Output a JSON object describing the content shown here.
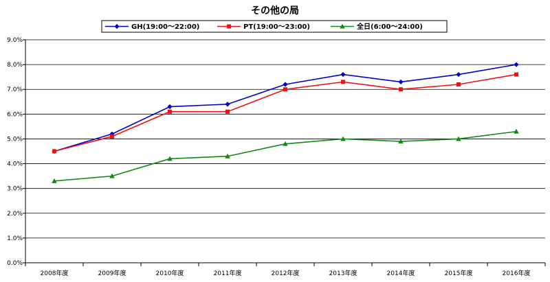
{
  "chart_data": {
    "type": "line",
    "title": "その他の局",
    "xlabel": "",
    "ylabel": "",
    "categories": [
      "2008年度",
      "2009年度",
      "2010年度",
      "2011年度",
      "2012年度",
      "2013年度",
      "2014年度",
      "2015年度",
      "2016年度"
    ],
    "ylim": [
      0,
      9
    ],
    "yticks": [
      0,
      1,
      2,
      3,
      4,
      5,
      6,
      7,
      8,
      9
    ],
    "y_tick_labels": [
      "0.0%",
      "1.0%",
      "2.0%",
      "3.0%",
      "4.0%",
      "5.0%",
      "6.0%",
      "7.0%",
      "8.0%",
      "9.0%"
    ],
    "grid": true,
    "legend_position": "top-center",
    "series": [
      {
        "name": "GH(19:00～22:00)",
        "color": "#0000cc",
        "marker": "diamond",
        "values": [
          4.5,
          5.2,
          6.3,
          6.4,
          7.2,
          7.6,
          7.3,
          7.6,
          8.0
        ]
      },
      {
        "name": "PT(19:00～23:00)",
        "color": "#ee1111",
        "marker": "square",
        "values": [
          4.5,
          5.1,
          6.1,
          6.1,
          7.0,
          7.3,
          7.0,
          7.2,
          7.6
        ]
      },
      {
        "name": "全日(6:00～24:00)",
        "color": "#118811",
        "marker": "triangle",
        "values": [
          3.3,
          3.5,
          4.2,
          4.3,
          4.8,
          5.0,
          4.9,
          5.0,
          5.3
        ]
      }
    ]
  }
}
